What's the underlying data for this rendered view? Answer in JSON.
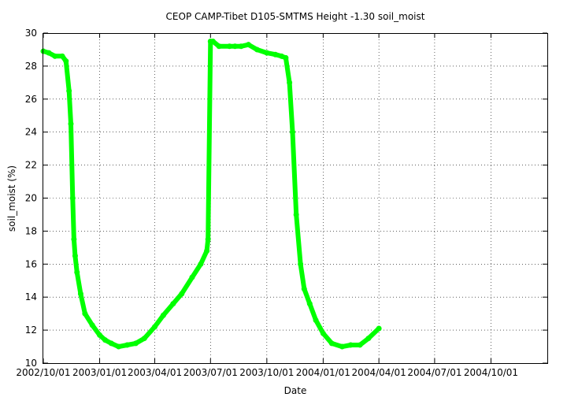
{
  "chart_data": {
    "type": "line",
    "title": "CEOP CAMP-Tibet D105-SMTMS Height -1.30 soil_moist",
    "xlabel": "Date",
    "ylabel": "soil_moist (%)",
    "xlim": [
      "2002/10/01",
      "2005/01/01"
    ],
    "ylim": [
      10,
      30
    ],
    "x_tick_labels": [
      "2002/10/01",
      "2003/01/01",
      "2003/04/01",
      "2003/07/01",
      "2003/10/01",
      "2004/01/01",
      "2004/04/01",
      "2004/07/01",
      "2004/10/01"
    ],
    "y_ticks": [
      10,
      12,
      14,
      16,
      18,
      20,
      22,
      24,
      26,
      28,
      30
    ],
    "grid": true,
    "series_color": "#00ff00",
    "series": [
      {
        "x": [
          "2002/10/01",
          "2002/10/10",
          "2002/10/20",
          "2002/11/01",
          "2002/11/07",
          "2002/11/12",
          "2002/11/15",
          "2002/11/18",
          "2002/11/20",
          "2002/11/22",
          "2002/11/25",
          "2002/12/01",
          "2002/12/08",
          "2002/12/20",
          "2003/01/01",
          "2003/01/10",
          "2003/01/20",
          "2003/02/01",
          "2003/02/15",
          "2003/03/01",
          "2003/03/15",
          "2003/04/01",
          "2003/04/15",
          "2003/05/01",
          "2003/05/15",
          "2003/06/01",
          "2003/06/15",
          "2003/06/25",
          "2003/06/27",
          "2003/07/01",
          "2003/07/05",
          "2003/07/15",
          "2003/08/01",
          "2003/08/10",
          "2003/08/20",
          "2003/09/01",
          "2003/09/15",
          "2003/10/01",
          "2003/10/15",
          "2003/10/25",
          "2003/11/01",
          "2003/11/07",
          "2003/11/12",
          "2003/11/18",
          "2003/11/25",
          "2003/12/01",
          "2003/12/10",
          "2003/12/20",
          "2004/01/01",
          "2004/01/15",
          "2004/02/01",
          "2004/02/15",
          "2004/03/01",
          "2004/03/15",
          "2004/04/01"
        ],
        "y": [
          28.9,
          28.8,
          28.6,
          28.6,
          28.3,
          26.5,
          24.5,
          20.0,
          17.5,
          16.5,
          15.5,
          14.2,
          13.0,
          12.3,
          11.7,
          11.4,
          11.2,
          11.0,
          11.1,
          11.2,
          11.5,
          12.2,
          12.9,
          13.6,
          14.2,
          15.2,
          16.0,
          16.8,
          17.5,
          29.5,
          29.5,
          29.2,
          29.2,
          29.2,
          29.2,
          29.3,
          29.0,
          28.8,
          28.7,
          28.6,
          28.5,
          27.0,
          24.0,
          19.0,
          16.0,
          14.5,
          13.6,
          12.6,
          11.8,
          11.2,
          11.0,
          11.1,
          11.1,
          11.5,
          12.1
        ]
      }
    ]
  }
}
